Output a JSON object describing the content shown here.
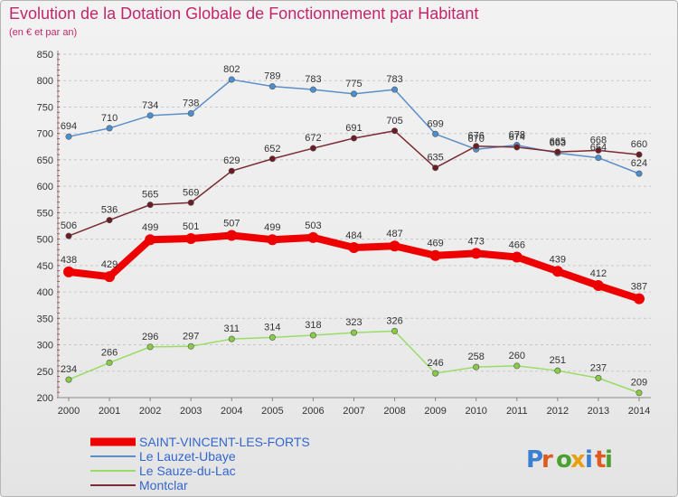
{
  "title": "Evolution de la Dotation Globale de Fonctionnement par Habitant",
  "subtitle": "(en € et par an)",
  "logo": "Proxiti",
  "colors": {
    "title": "#c4266b",
    "legend_text": "#3366cc"
  },
  "chart_data": {
    "type": "line",
    "title": "Evolution de la Dotation Globale de Fonctionnement par Habitant",
    "subtitle": "(en € et par an)",
    "xlabel": "",
    "ylabel": "",
    "x": [
      "2000",
      "2001",
      "2002",
      "2003",
      "2004",
      "2005",
      "2006",
      "2007",
      "2008",
      "2009",
      "2010",
      "2011",
      "2012",
      "2013",
      "2014"
    ],
    "ylim": [
      200,
      850
    ],
    "yticks": [
      "200",
      "250",
      "300",
      "350",
      "400",
      "450",
      "500",
      "550",
      "600",
      "650",
      "700",
      "750",
      "800",
      "850"
    ],
    "grid": "horizontal dashed",
    "legend_position": "bottom",
    "series": [
      {
        "name": "Le Lauzet-Ubaye",
        "color": "#5b8fc7",
        "marker": "#4a90d0",
        "values": [
          694,
          710,
          734,
          738,
          802,
          789,
          783,
          775,
          783,
          699,
          670,
          678,
          663,
          654,
          624
        ],
        "labels": [
          "694",
          "710",
          "734",
          "738",
          "802",
          "789",
          "783",
          "775",
          "783",
          "699",
          "670",
          "678",
          "663",
          "654",
          "624"
        ]
      },
      {
        "name": "Montclar",
        "color": "#7a2b33",
        "marker": "#6b1c24",
        "values": [
          506,
          536,
          565,
          569,
          629,
          652,
          672,
          691,
          705,
          635,
          676,
          674,
          665,
          668,
          660
        ],
        "labels": [
          "506",
          "536",
          "565",
          "569",
          "629",
          "652",
          "672",
          "691",
          "705",
          "635",
          "676",
          "674",
          "665",
          "668",
          "660"
        ]
      },
      {
        "name": "SAINT-VINCENT-LES-FORTS",
        "color": "#ee0000",
        "marker": "#ee0000",
        "values": [
          438,
          429,
          499,
          501,
          507,
          499,
          503,
          484,
          487,
          469,
          473,
          466,
          439,
          412,
          387
        ],
        "labels": [
          "438",
          "429",
          "499",
          "501",
          "507",
          "499",
          "503",
          "484",
          "487",
          "469",
          "473",
          "466",
          "439",
          "412",
          "387"
        ]
      },
      {
        "name": "Le Sauze-du-Lac",
        "color": "#99dd66",
        "marker": "#88cc44",
        "values": [
          234,
          266,
          296,
          297,
          311,
          314,
          318,
          323,
          326,
          246,
          258,
          260,
          251,
          237,
          209
        ],
        "labels": [
          "234",
          "266",
          "296",
          "297",
          "311",
          "314",
          "318",
          "323",
          "326",
          "246",
          "258",
          "260",
          "251",
          "237",
          "209"
        ]
      }
    ],
    "legend": [
      {
        "name": "SAINT-VINCENT-LES-FORTS",
        "color": "#ee0000"
      },
      {
        "name": "Le Lauzet-Ubaye",
        "color": "#5b8fc7"
      },
      {
        "name": "Le Sauze-du-Lac",
        "color": "#99dd66"
      },
      {
        "name": "Montclar",
        "color": "#7a2b33"
      }
    ]
  }
}
